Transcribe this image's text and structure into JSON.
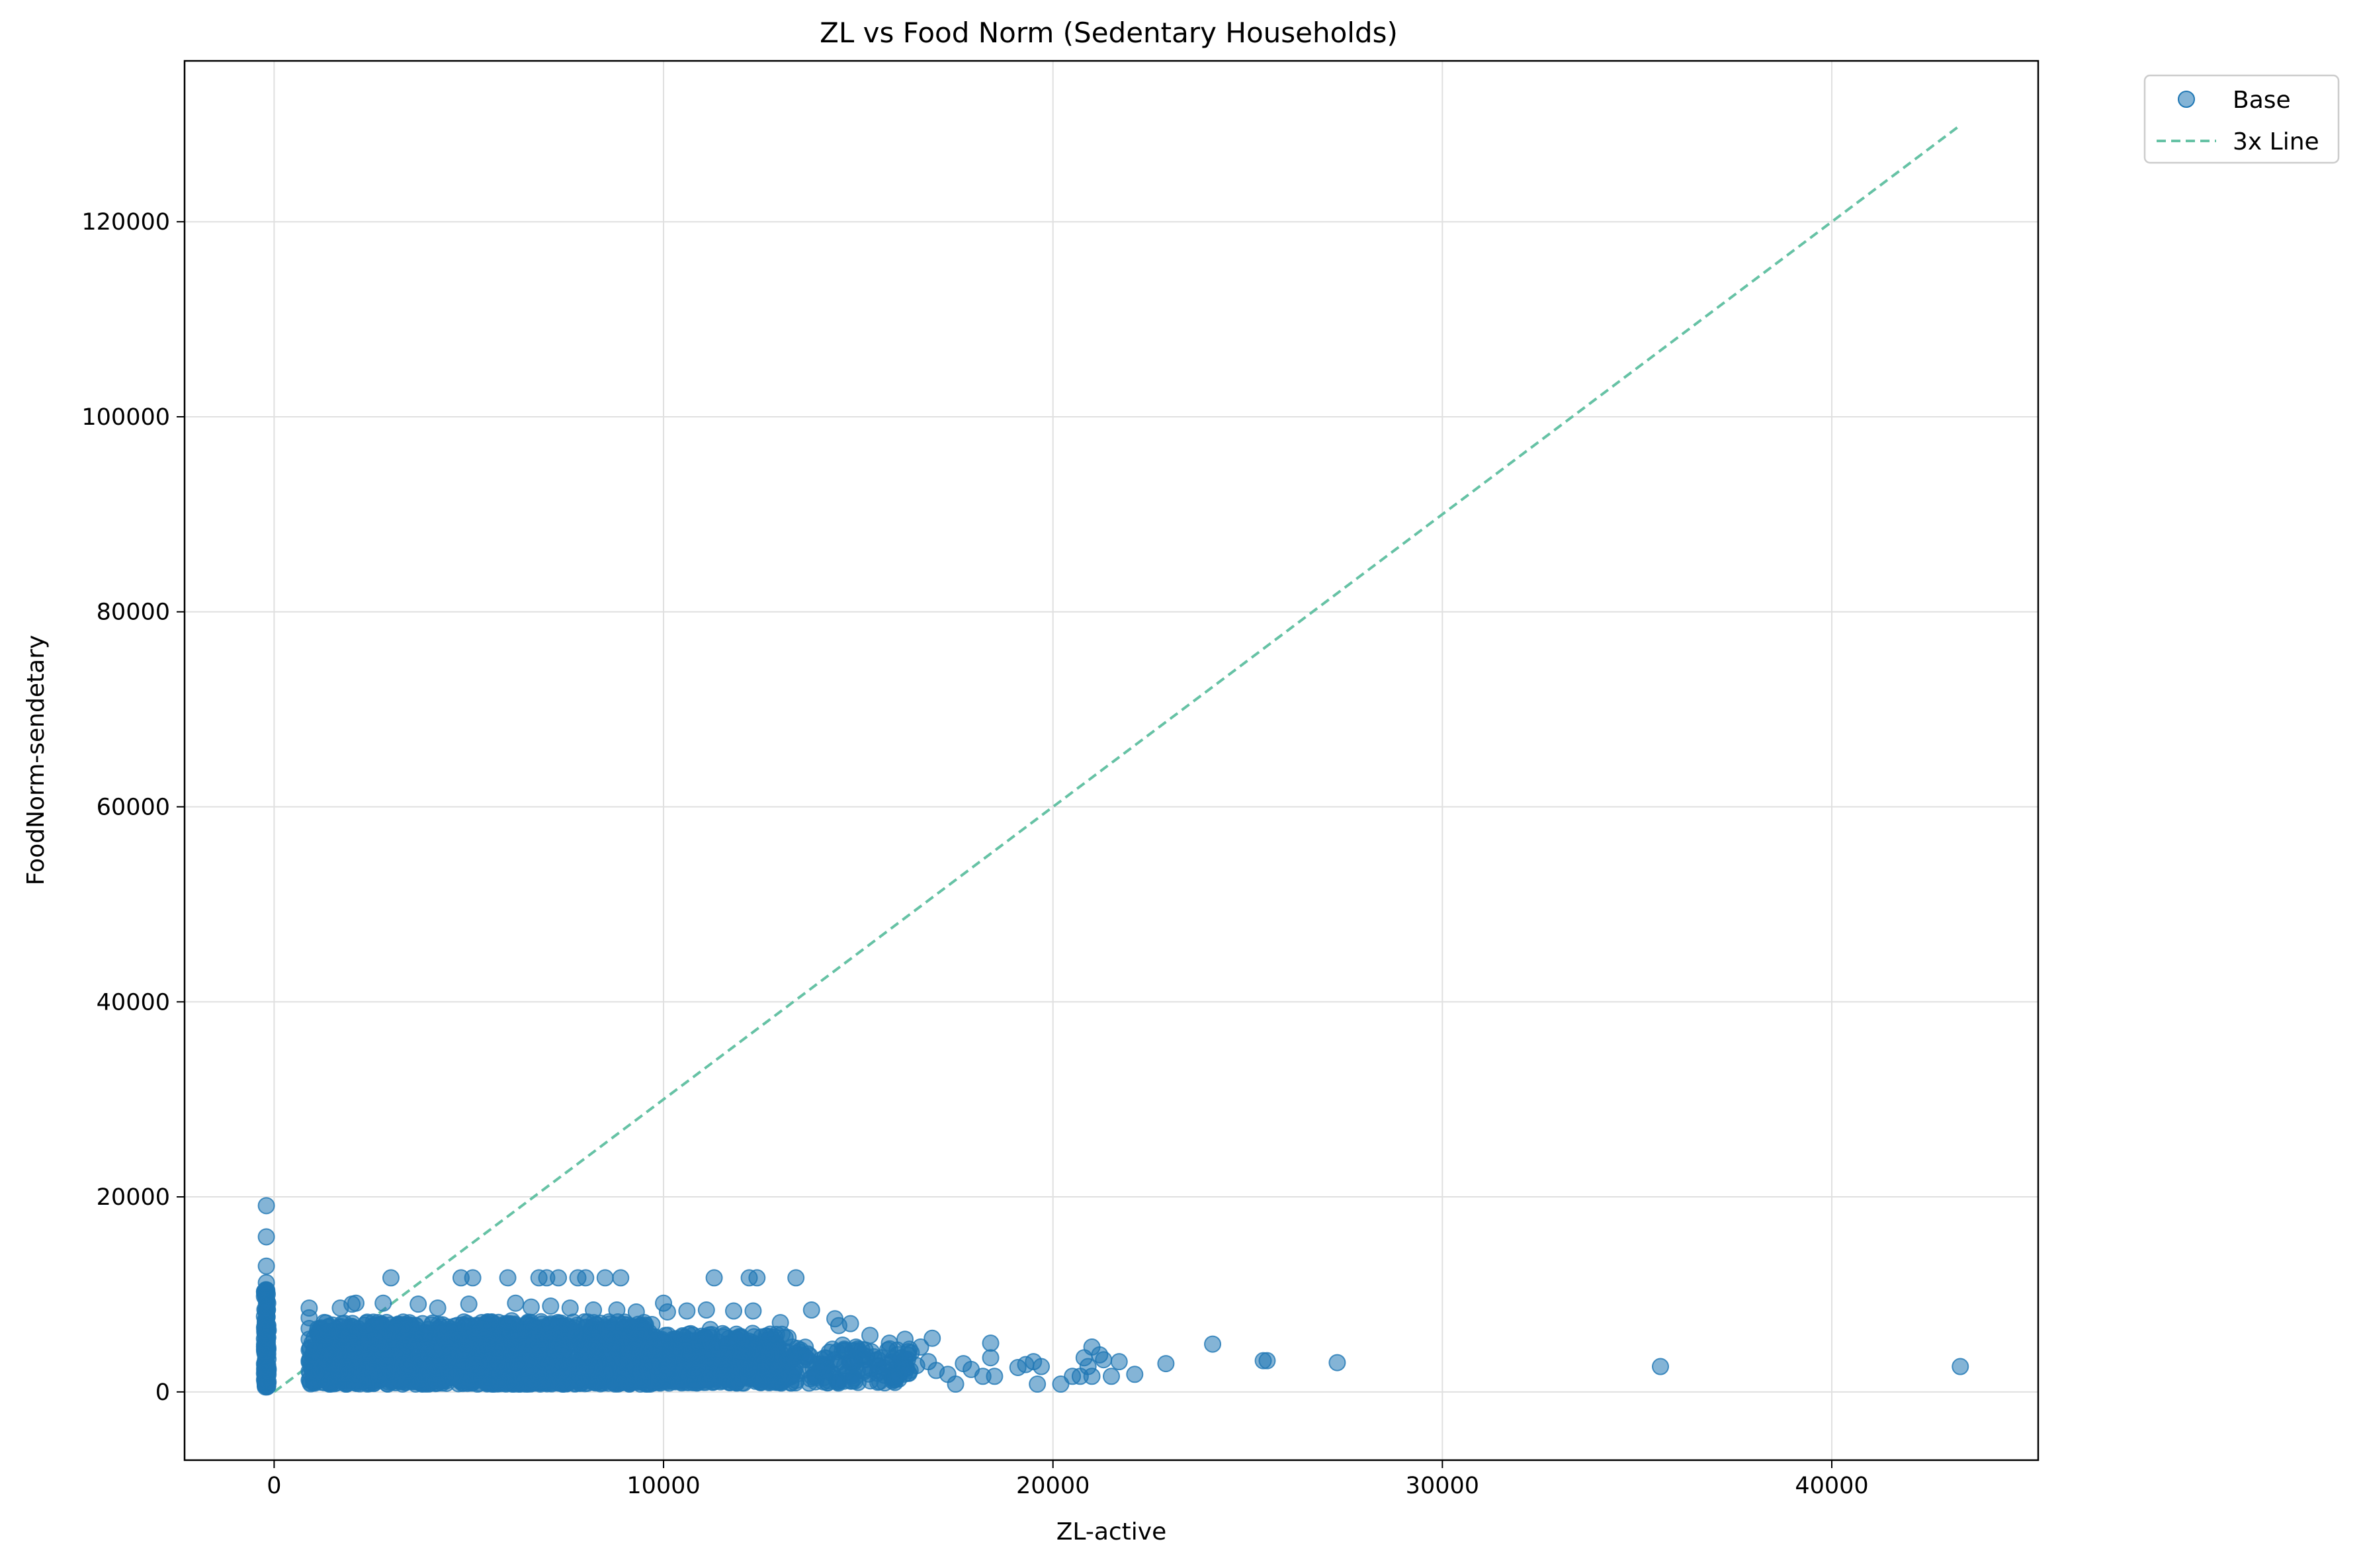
{
  "chart_data": {
    "type": "scatter",
    "title": "ZL vs Food Norm (Sedentary Households)",
    "xlabel": "ZL-active",
    "ylabel": "FoodNorm-sendetary",
    "xlim": [
      -2300,
      45300
    ],
    "ylim": [
      -7000,
      136500
    ],
    "x_ticks": [
      0,
      10000,
      20000,
      30000,
      40000
    ],
    "x_tick_labels": [
      "0",
      "10000",
      "20000",
      "30000",
      "40000"
    ],
    "y_ticks": [
      0,
      20000,
      40000,
      60000,
      80000,
      100000,
      120000
    ],
    "y_tick_labels": [
      "0",
      "20000",
      "40000",
      "60000",
      "80000",
      "100000",
      "120000"
    ],
    "grid": true,
    "legend_position": "outside top-right",
    "legend": [
      {
        "label": "Base",
        "marker": "circle",
        "color": "#1f77b4"
      },
      {
        "label": "3x Line",
        "marker": "dashed-line",
        "color": "#66c2a5"
      }
    ],
    "series": [
      {
        "name": "Base",
        "kind": "scatter",
        "color": "#1f77b4",
        "opacity": 0.55,
        "points": [
          [
            -200,
            19100
          ],
          [
            -200,
            15900
          ],
          [
            -200,
            12900
          ],
          [
            -200,
            11200
          ],
          [
            -200,
            10300
          ],
          [
            -200,
            9400
          ],
          [
            -200,
            8500
          ],
          [
            -200,
            7600
          ],
          [
            -200,
            6700
          ],
          [
            -200,
            5800
          ],
          [
            -200,
            4900
          ],
          [
            -200,
            4000
          ],
          [
            -200,
            3100
          ],
          [
            -200,
            2200
          ],
          [
            -200,
            1300
          ],
          [
            900,
            8600
          ],
          [
            900,
            7600
          ],
          [
            900,
            6500
          ],
          [
            900,
            5400
          ],
          [
            900,
            4300
          ],
          [
            900,
            3200
          ],
          [
            900,
            2100
          ],
          [
            900,
            1200
          ],
          [
            1400,
            6200
          ],
          [
            1700,
            8600
          ],
          [
            2000,
            9000
          ],
          [
            2100,
            9100
          ],
          [
            2800,
            9100
          ],
          [
            3000,
            11700
          ],
          [
            3700,
            9000
          ],
          [
            4200,
            8600
          ],
          [
            4800,
            11700
          ],
          [
            5000,
            9000
          ],
          [
            5100,
            11700
          ],
          [
            6000,
            11700
          ],
          [
            6800,
            11700
          ],
          [
            7000,
            11700
          ],
          [
            7300,
            11700
          ],
          [
            7800,
            11700
          ],
          [
            8000,
            11700
          ],
          [
            8500,
            11700
          ],
          [
            8900,
            11700
          ],
          [
            6200,
            9100
          ],
          [
            6600,
            8700
          ],
          [
            7100,
            8800
          ],
          [
            7600,
            8600
          ],
          [
            8200,
            8400
          ],
          [
            8800,
            8400
          ],
          [
            9300,
            8200
          ],
          [
            10000,
            9100
          ],
          [
            10100,
            8200
          ],
          [
            10600,
            8300
          ],
          [
            11100,
            8400
          ],
          [
            11300,
            11700
          ],
          [
            11800,
            8300
          ],
          [
            12200,
            11700
          ],
          [
            12400,
            11700
          ],
          [
            12300,
            8300
          ],
          [
            13400,
            11700
          ],
          [
            13800,
            8400
          ],
          [
            13000,
            7100
          ],
          [
            14400,
            7500
          ],
          [
            14500,
            6800
          ],
          [
            14800,
            7000
          ],
          [
            15300,
            5800
          ],
          [
            15800,
            5000
          ],
          [
            16200,
            5400
          ],
          [
            16600,
            4600
          ],
          [
            16900,
            5500
          ],
          [
            15000,
            4200
          ],
          [
            15600,
            3500
          ],
          [
            16000,
            2600
          ],
          [
            16300,
            1900
          ],
          [
            16800,
            3100
          ],
          [
            17000,
            2200
          ],
          [
            17300,
            1800
          ],
          [
            17500,
            800
          ],
          [
            17700,
            2900
          ],
          [
            17900,
            2300
          ],
          [
            18200,
            1600
          ],
          [
            18400,
            5000
          ],
          [
            18400,
            3500
          ],
          [
            18500,
            1600
          ],
          [
            19100,
            2500
          ],
          [
            19300,
            2800
          ],
          [
            19500,
            3100
          ],
          [
            19600,
            800
          ],
          [
            19700,
            2600
          ],
          [
            20200,
            800
          ],
          [
            20500,
            1600
          ],
          [
            20700,
            1600
          ],
          [
            20800,
            3500
          ],
          [
            20900,
            2600
          ],
          [
            21000,
            4600
          ],
          [
            21000,
            1600
          ],
          [
            21200,
            3800
          ],
          [
            21300,
            3300
          ],
          [
            21500,
            1600
          ],
          [
            21700,
            3100
          ],
          [
            22100,
            1800
          ],
          [
            22900,
            2900
          ],
          [
            24100,
            4900
          ],
          [
            25400,
            3200
          ],
          [
            25500,
            3200
          ],
          [
            27300,
            3000
          ],
          [
            35600,
            2600
          ],
          [
            43300,
            2600
          ],
          [
            1200,
            1000
          ],
          [
            1500,
            2500
          ],
          [
            1900,
            3800
          ],
          [
            2300,
            1500
          ],
          [
            2500,
            5200
          ],
          [
            3000,
            2200
          ],
          [
            3200,
            6700
          ],
          [
            3500,
            1100
          ],
          [
            3900,
            4000
          ],
          [
            4300,
            2700
          ],
          [
            4600,
            6200
          ],
          [
            4900,
            1600
          ],
          [
            5300,
            4800
          ],
          [
            5700,
            3000
          ],
          [
            6100,
            7300
          ],
          [
            6400,
            1500
          ],
          [
            6800,
            5000
          ],
          [
            7200,
            2700
          ],
          [
            7700,
            6200
          ],
          [
            8100,
            1400
          ],
          [
            8600,
            4200
          ],
          [
            9000,
            2600
          ],
          [
            9400,
            6300
          ],
          [
            9800,
            1200
          ],
          [
            10300,
            4500
          ],
          [
            10700,
            2400
          ],
          [
            11200,
            6400
          ],
          [
            11600,
            1300
          ],
          [
            12000,
            4200
          ],
          [
            12500,
            2600
          ],
          [
            12900,
            5900
          ],
          [
            13300,
            1700
          ],
          [
            13700,
            3900
          ],
          [
            14100,
            2100
          ],
          [
            14600,
            4800
          ],
          [
            14900,
            1400
          ],
          [
            15400,
            3600
          ],
          [
            15900,
            1500
          ],
          [
            16500,
            2700
          ]
        ],
        "dense_bands": [
          {
            "x_range": [
              900,
              9800
            ],
            "y_range": [
              800,
              7200
            ],
            "count": 1800
          },
          {
            "x_range": [
              9800,
              13200
            ],
            "y_range": [
              900,
              6000
            ],
            "count": 520
          },
          {
            "x_range": [
              13200,
              16400
            ],
            "y_range": [
              900,
              4600
            ],
            "count": 150
          },
          {
            "x_range": [
              -250,
              -150
            ],
            "y_range": [
              500,
              10500
            ],
            "count": 120
          }
        ]
      },
      {
        "name": "3x Line",
        "kind": "line",
        "color": "#66c2a5",
        "style": "dashed",
        "points": [
          [
            0,
            0
          ],
          [
            43300,
            129900
          ]
        ]
      }
    ]
  }
}
